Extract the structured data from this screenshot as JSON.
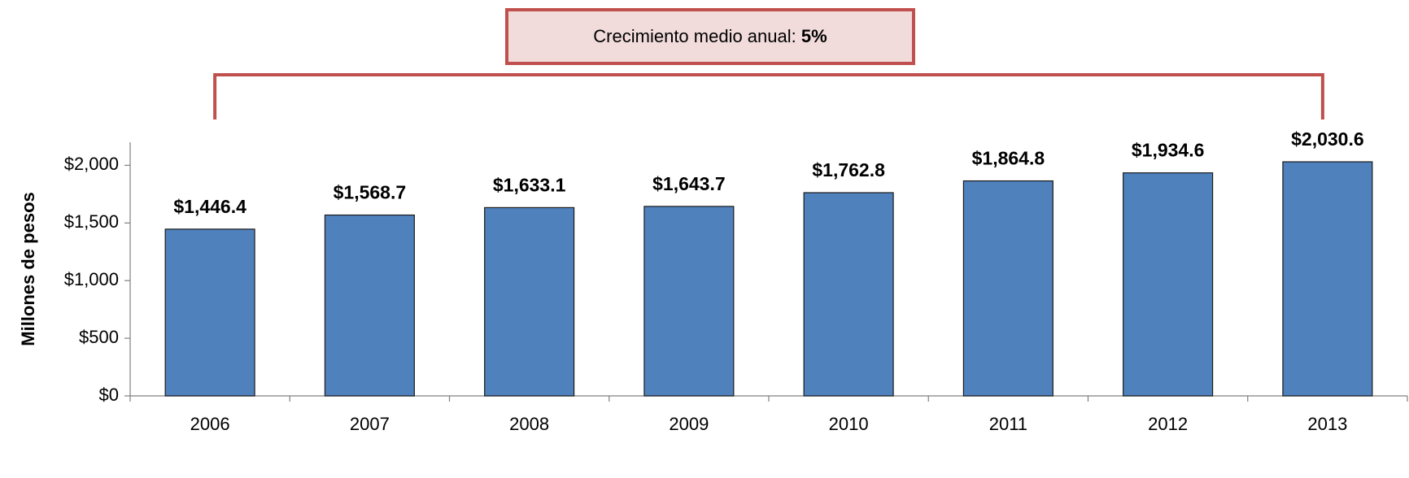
{
  "chart_data": {
    "type": "bar",
    "annotation": {
      "text": "Crecimiento medio anual:",
      "value": "5%"
    },
    "y_label": "Millones de pesos",
    "categories": [
      "2006",
      "2007",
      "2008",
      "2009",
      "2010",
      "2011",
      "2012",
      "2013"
    ],
    "values": [
      1446.4,
      1568.7,
      1633.1,
      1643.7,
      1762.8,
      1864.8,
      1934.6,
      2030.6
    ],
    "value_labels": [
      "$1,446.4",
      "$1,568.7",
      "$1,633.1",
      "$1,643.7",
      "$1,762.8",
      "$1,864.8",
      "$1,934.6",
      "$2,030.6"
    ],
    "color": "#4f81bd",
    "ylim": [
      0,
      2200
    ],
    "yticks": [
      {
        "value": 0,
        "label": "$0"
      },
      {
        "value": 500,
        "label": "$500"
      },
      {
        "value": 1000,
        "label": "$1,000"
      },
      {
        "value": 1500,
        "label": "$1,500"
      },
      {
        "value": 2000,
        "label": "$2,000"
      }
    ],
    "grid": false
  }
}
